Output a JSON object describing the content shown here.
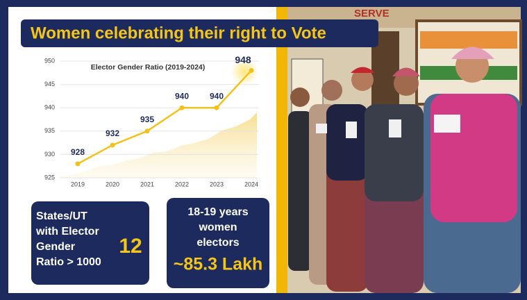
{
  "header": {
    "title": "Women celebrating their right to Vote"
  },
  "chart_data": {
    "type": "line",
    "title": "Elector Gender Ratio (2019-2024)",
    "categories": [
      "2019",
      "2020",
      "2021",
      "2022",
      "2023",
      "2024"
    ],
    "values": [
      928,
      932,
      935,
      940,
      940,
      948
    ],
    "color": "#f2c21b",
    "ylim": [
      925,
      950
    ],
    "yticks": [
      925,
      930,
      935,
      940,
      945,
      950
    ],
    "grid": true
  },
  "stats": [
    {
      "label_lines": [
        "States/UT",
        "with Elector",
        "Gender",
        "Ratio > 1000"
      ],
      "value": "12"
    },
    {
      "label_lines": [
        "18-19 years",
        "women",
        "electors"
      ],
      "value": "~85.3 Lakh"
    }
  ],
  "photo": {
    "sign": "SERVE"
  }
}
